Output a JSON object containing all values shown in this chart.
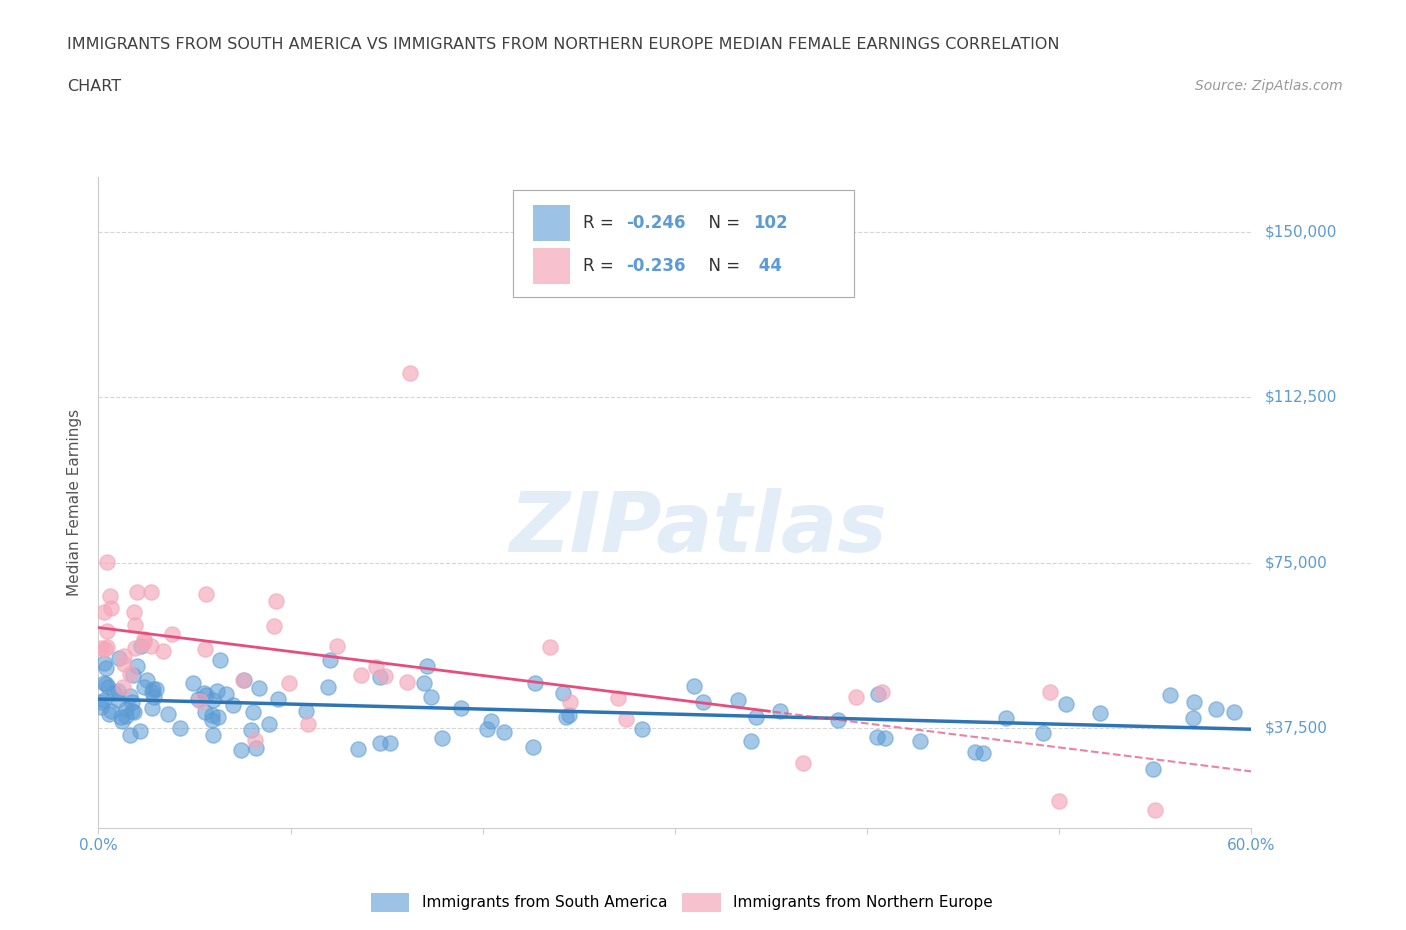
{
  "title_line1": "IMMIGRANTS FROM SOUTH AMERICA VS IMMIGRANTS FROM NORTHERN EUROPE MEDIAN FEMALE EARNINGS CORRELATION",
  "title_line2": "CHART",
  "source_text": "Source: ZipAtlas.com",
  "ylabel": "Median Female Earnings",
  "xmin": 0.0,
  "xmax": 0.6,
  "ymin": 15000,
  "ymax": 162500,
  "yticks": [
    37500,
    75000,
    112500,
    150000
  ],
  "ytick_labels": [
    "$37,500",
    "$75,000",
    "$112,500",
    "$150,000"
  ],
  "xticks": [
    0.0,
    0.1,
    0.2,
    0.3,
    0.4,
    0.5,
    0.6
  ],
  "xtick_labels_show": [
    "0.0%",
    "",
    "",
    "",
    "",
    "",
    "60.0%"
  ],
  "blue_R": -0.246,
  "blue_N": 102,
  "pink_R": -0.236,
  "pink_N": 44,
  "blue_label": "Immigrants from South America",
  "pink_label": "Immigrants from Northern Europe",
  "blue_color": "#5B9BD5",
  "pink_color": "#F4A7B9",
  "blue_trend_color": "#2E75B6",
  "pink_trend_color": "#E84C7D",
  "grid_color": "#CCCCCC",
  "title_color": "#404040",
  "axis_label_color": "#555555",
  "tick_color": "#5B9BD5",
  "background_color": "#FFFFFF",
  "watermark_text": "ZIPatlas",
  "watermark_color": "#C8DCF0"
}
